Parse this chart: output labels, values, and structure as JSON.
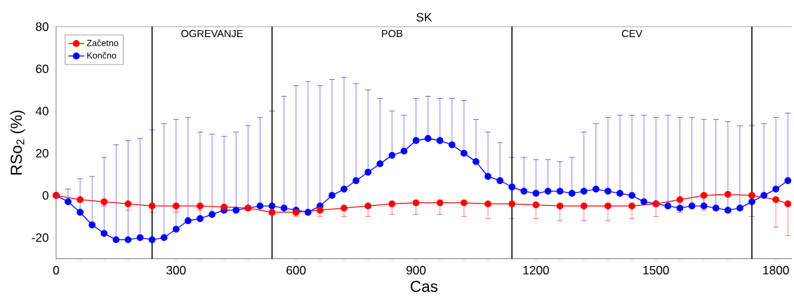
{
  "chart_data": {
    "type": "line",
    "title": "SK",
    "xlabel": "Cas",
    "ylabel": "RSo$_{2}$ (%)",
    "xlim": [
      0,
      1840
    ],
    "ylim": [
      -30,
      80
    ],
    "xticks": [
      0,
      300,
      600,
      900,
      1200,
      1500,
      1800
    ],
    "yticks": [
      -20,
      0,
      20,
      40,
      60,
      80
    ],
    "legend": "top left",
    "marker": "circle",
    "grid": false,
    "series": [
      {
        "name": "Začetno",
        "color": "#ff0000",
        "x": [
          0,
          60,
          120,
          180,
          240,
          300,
          360,
          420,
          480,
          540,
          600,
          660,
          720,
          780,
          840,
          900,
          960,
          1020,
          1080,
          1140,
          1200,
          1260,
          1320,
          1380,
          1440,
          1500,
          1560,
          1620,
          1680,
          1740,
          1800,
          1830
        ],
        "values": [
          0,
          -2,
          -3,
          -4,
          -5,
          -5,
          -5,
          -5.5,
          -6,
          -8,
          -8,
          -7,
          -6,
          -5,
          -4,
          -3.5,
          -3.5,
          -3.5,
          -4,
          -4,
          -4.5,
          -5,
          -5,
          -5,
          -5,
          -4,
          -2,
          0,
          0.5,
          0,
          -2,
          -4
        ],
        "errors": [
          [
            0,
            0
          ],
          [
            -3,
            -2
          ],
          [
            -5,
            -3
          ],
          [
            -7,
            -4
          ],
          [
            -8,
            -5
          ],
          [
            -8,
            -5
          ],
          [
            -7,
            -5
          ],
          [
            -6,
            -5.5
          ],
          [
            -6,
            -6
          ],
          [
            -9,
            -8
          ],
          [
            -10,
            -8
          ],
          [
            -10,
            -7
          ],
          [
            -10,
            -6
          ],
          [
            -10,
            -5
          ],
          [
            -9,
            -4
          ],
          [
            -9,
            -3.5
          ],
          [
            -9,
            -3.5
          ],
          [
            -10,
            -3.5
          ],
          [
            -11,
            -4
          ],
          [
            -11,
            -4
          ],
          [
            -11,
            -4.5
          ],
          [
            -12,
            -5
          ],
          [
            -12,
            -5
          ],
          [
            -12,
            -5
          ],
          [
            -11,
            -5
          ],
          [
            -10,
            -4
          ],
          [
            -8,
            -2
          ],
          [
            -7,
            0
          ],
          null,
          [
            -10,
            0
          ],
          [
            -15,
            -2
          ],
          [
            -19,
            -4
          ]
        ]
      },
      {
        "name": "Končno",
        "color": "#0000ff",
        "x": [
          0,
          30,
          60,
          90,
          120,
          150,
          180,
          210,
          240,
          270,
          300,
          330,
          360,
          390,
          420,
          450,
          480,
          510,
          540,
          570,
          600,
          630,
          660,
          690,
          720,
          750,
          780,
          810,
          840,
          870,
          900,
          930,
          960,
          990,
          1020,
          1050,
          1080,
          1110,
          1140,
          1170,
          1200,
          1230,
          1260,
          1290,
          1320,
          1350,
          1380,
          1410,
          1440,
          1470,
          1500,
          1530,
          1560,
          1590,
          1620,
          1650,
          1680,
          1710,
          1740,
          1770,
          1800,
          1830
        ],
        "values": [
          0,
          -3,
          -8,
          -14,
          -18,
          -21,
          -21,
          -20,
          -21,
          -20,
          -16,
          -12,
          -11,
          -9,
          -7,
          -7,
          -6,
          -5,
          -5,
          -6,
          -7,
          -8,
          -5,
          0,
          3,
          7,
          11,
          15,
          19,
          21,
          26,
          27,
          26,
          24,
          20,
          16,
          9,
          7,
          4,
          2,
          1,
          2,
          2,
          1,
          2,
          3,
          2,
          1,
          0,
          -3,
          -4,
          -5,
          -6,
          -5,
          -5,
          -6,
          -7,
          -6,
          -3,
          0,
          3,
          7
        ],
        "errors": [
          [
            0,
            0
          ],
          [
            -3,
            3
          ],
          [
            -8,
            8
          ],
          [
            -14,
            9
          ],
          [
            -18,
            18
          ],
          [
            -21,
            24
          ],
          [
            -21,
            26
          ],
          [
            -20,
            27
          ],
          [
            -21,
            31
          ],
          [
            -20,
            34
          ],
          [
            -16,
            36
          ],
          [
            -12,
            37
          ],
          [
            -11,
            30
          ],
          [
            -9,
            29
          ],
          [
            -7,
            28
          ],
          [
            -7,
            30
          ],
          [
            -6,
            33
          ],
          [
            -5,
            37
          ],
          [
            -5,
            40
          ],
          [
            -6,
            47
          ],
          [
            -7,
            52
          ],
          [
            -8,
            54
          ],
          [
            -5,
            52
          ],
          [
            0,
            55
          ],
          [
            3,
            56
          ],
          [
            7,
            53
          ],
          [
            11,
            50
          ],
          [
            15,
            46
          ],
          [
            19,
            40
          ],
          [
            21,
            38
          ],
          [
            26,
            46
          ],
          [
            27,
            47
          ],
          [
            26,
            46
          ],
          [
            24,
            46
          ],
          [
            20,
            45
          ],
          [
            16,
            36
          ],
          [
            9,
            30
          ],
          [
            7,
            25
          ],
          [
            4,
            18
          ],
          [
            2,
            18
          ],
          [
            1,
            17
          ],
          [
            2,
            17
          ],
          [
            2,
            16
          ],
          [
            1,
            18
          ],
          [
            2,
            30
          ],
          [
            3,
            34
          ],
          [
            2,
            37
          ],
          [
            1,
            38
          ],
          [
            0,
            38
          ],
          [
            -3,
            38
          ],
          [
            -4,
            37
          ],
          [
            -5,
            38
          ],
          [
            -6,
            37
          ],
          [
            -5,
            37
          ],
          [
            -5,
            36
          ],
          [
            -6,
            36
          ],
          [
            -7,
            35
          ],
          [
            -6,
            33
          ],
          [
            -3,
            33
          ],
          [
            0,
            34
          ],
          [
            3,
            37
          ],
          [
            7,
            39
          ]
        ]
      }
    ],
    "ref_lines": [
      {
        "axis": "x",
        "value": 240,
        "color": "#000000"
      },
      {
        "axis": "x",
        "value": 540,
        "color": "#000000"
      },
      {
        "axis": "x",
        "value": 1140,
        "color": "#000000"
      },
      {
        "axis": "x",
        "value": 1740,
        "color": "#000000"
      }
    ],
    "annotations": [
      "OGREVANJE",
      "POB",
      "CEV"
    ]
  }
}
